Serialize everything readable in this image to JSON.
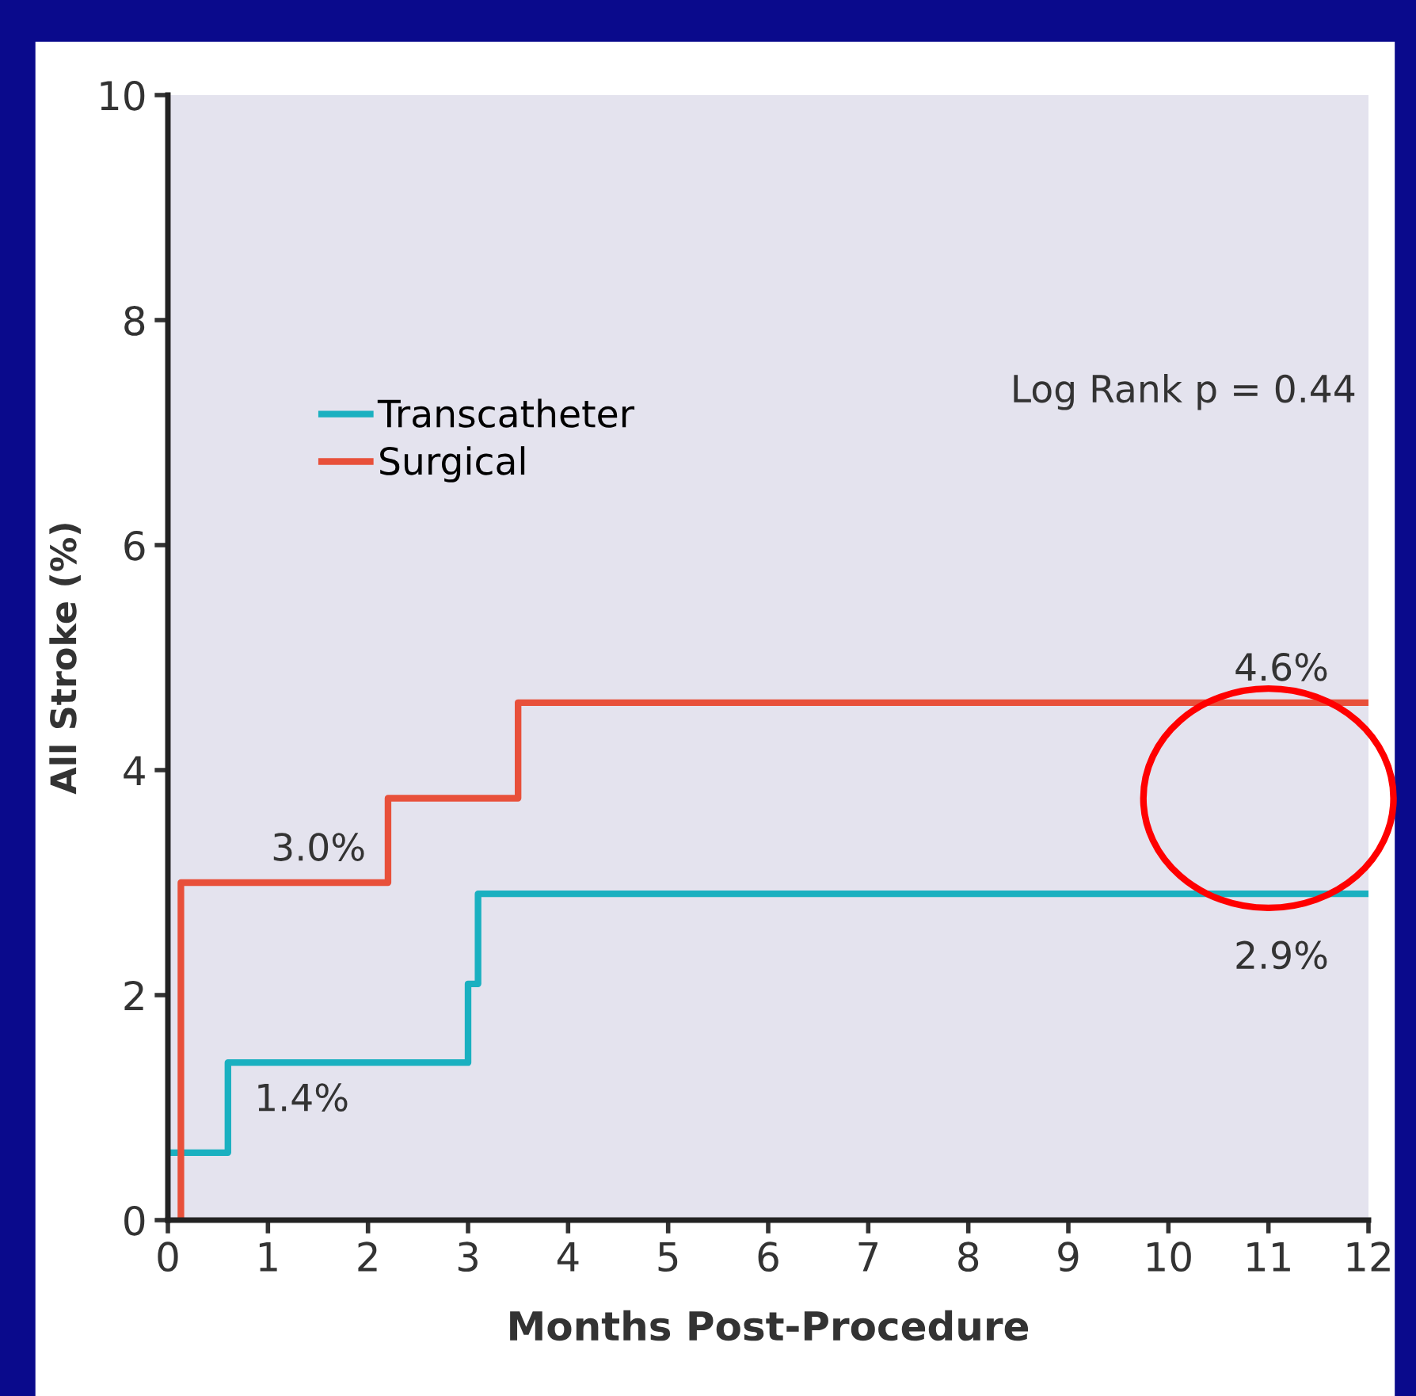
{
  "chart_data": {
    "type": "step",
    "xlabel": "Months Post-Procedure",
    "ylabel": "All Stroke (%)",
    "xlim": [
      0,
      12
    ],
    "xticks": [
      0,
      1,
      2,
      3,
      4,
      5,
      6,
      7,
      8,
      9,
      10,
      11,
      12
    ],
    "ylim": [
      0,
      10
    ],
    "yticks": [
      0,
      2,
      4,
      6,
      8,
      10
    ],
    "grid": false,
    "legend": "top left",
    "marker": "none",
    "line_style": "solid",
    "series": [
      {
        "name": "Transcatheter",
        "color": "#1ab0c0",
        "x": [
          0,
          0.6,
          3.0,
          3.1,
          12
        ],
        "values": [
          0.6,
          1.4,
          2.1,
          2.9,
          2.9
        ]
      },
      {
        "name": "Surgical",
        "color": "#e8503a",
        "x": [
          0.13,
          0.13,
          2.2,
          3.5,
          12
        ],
        "values": [
          0,
          3.0,
          3.75,
          4.6,
          4.6
        ]
      }
    ],
    "annotations": [
      {
        "text": "1.4%",
        "x": 0.6,
        "y": 1.4
      },
      {
        "text": "3.0%",
        "x": 2.2,
        "y": 3.0
      },
      {
        "text": "4.6%",
        "x": 12,
        "y": 4.6
      },
      {
        "text": "2.9%",
        "x": 12,
        "y": 2.9
      },
      "Log Rank p = 0.44"
    ]
  }
}
